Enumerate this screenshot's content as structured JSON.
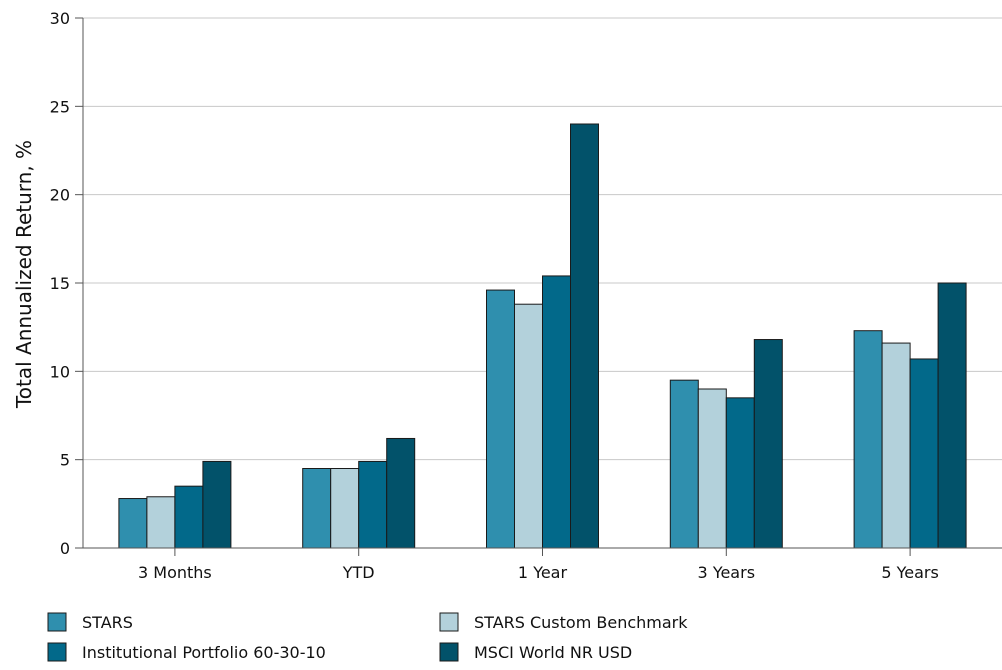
{
  "chart_data": {
    "type": "bar",
    "title": "",
    "xlabel": "",
    "ylabel": "Total Annualized Return, %",
    "ylim": [
      0,
      30
    ],
    "yticks": [
      0,
      5,
      10,
      15,
      20,
      25,
      30
    ],
    "grid": true,
    "legend_position": "bottom",
    "categories": [
      "3 Months",
      "YTD",
      "1 Year",
      "3 Years",
      "5 Years"
    ],
    "series": [
      {
        "name": "STARS",
        "color": "#2f8fae",
        "values": [
          2.8,
          4.5,
          14.6,
          9.5,
          12.3
        ]
      },
      {
        "name": "STARS Custom Benchmark",
        "color": "#b3d1db",
        "values": [
          2.9,
          4.5,
          13.8,
          9.0,
          11.6
        ]
      },
      {
        "name": "Institutional Portfolio 60-30-10",
        "color": "#02698a",
        "values": [
          3.5,
          4.9,
          15.4,
          8.5,
          10.7
        ]
      },
      {
        "name": "MSCI World NR USD",
        "color": "#02526a",
        "values": [
          4.9,
          6.2,
          24.0,
          11.8,
          15.0
        ]
      }
    ]
  }
}
